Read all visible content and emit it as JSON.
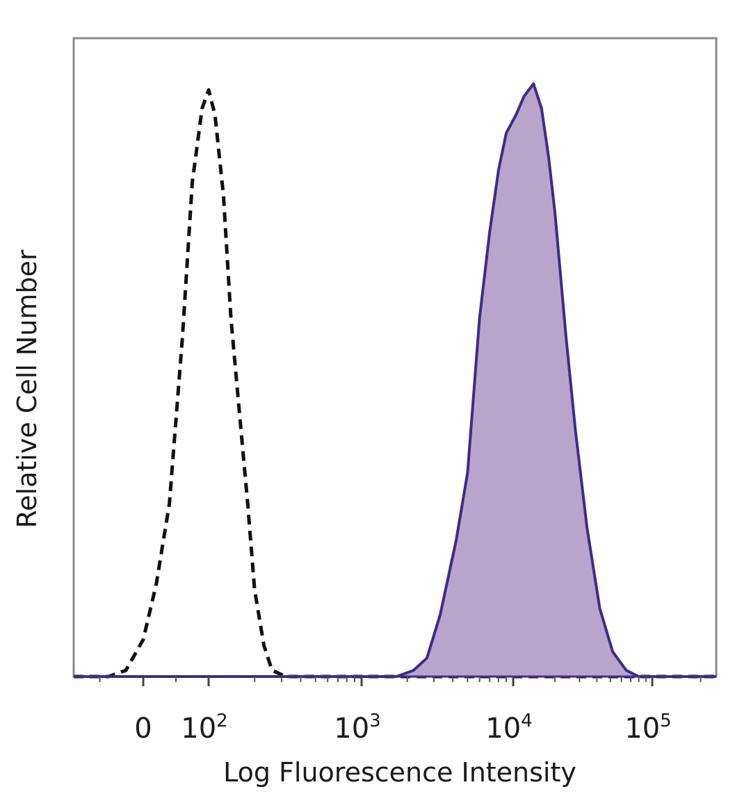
{
  "chart_data": {
    "type": "area",
    "xlabel": "Log Fluorescence Intensity",
    "ylabel": "Relative Cell Number",
    "x_scale": "biexponential",
    "xlim": [
      -80,
      250000
    ],
    "ylim": [
      0,
      100
    ],
    "grid": false,
    "legend": "none",
    "x_ticks": [
      {
        "value": 0,
        "base": "0",
        "exp": ""
      },
      {
        "value": 100,
        "base": "10",
        "exp": "2"
      },
      {
        "value": 1000,
        "base": "10",
        "exp": "3"
      },
      {
        "value": 10000,
        "base": "10",
        "exp": "4"
      },
      {
        "value": 100000,
        "base": "10",
        "exp": "5"
      }
    ],
    "series": [
      {
        "style": "dashed",
        "color": "#111111",
        "filled": false,
        "points": [
          [
            -80,
            0
          ],
          [
            -40,
            0
          ],
          [
            -20,
            1
          ],
          [
            0,
            6
          ],
          [
            20,
            15
          ],
          [
            40,
            28
          ],
          [
            60,
            55
          ],
          [
            75,
            80
          ],
          [
            90,
            92
          ],
          [
            100,
            95
          ],
          [
            110,
            91
          ],
          [
            125,
            78
          ],
          [
            140,
            58
          ],
          [
            160,
            42
          ],
          [
            180,
            28
          ],
          [
            200,
            14
          ],
          [
            230,
            5
          ],
          [
            260,
            1
          ],
          [
            320,
            0
          ],
          [
            1000,
            0
          ],
          [
            3000,
            0
          ],
          [
            10000,
            0
          ],
          [
            30000,
            0
          ],
          [
            100000,
            0
          ],
          [
            250000,
            0
          ]
        ]
      },
      {
        "style": "solid",
        "color": "#3f2b86",
        "fill": "#b9a4cc",
        "filled": true,
        "points": [
          [
            -80,
            0
          ],
          [
            100,
            0
          ],
          [
            1000,
            0
          ],
          [
            1700,
            0
          ],
          [
            2200,
            1
          ],
          [
            2700,
            3
          ],
          [
            3300,
            10
          ],
          [
            4200,
            22
          ],
          [
            5000,
            33
          ],
          [
            6000,
            58
          ],
          [
            7000,
            72
          ],
          [
            8000,
            82
          ],
          [
            9000,
            88
          ],
          [
            10500,
            91
          ],
          [
            12000,
            94
          ],
          [
            14000,
            96
          ],
          [
            16000,
            92
          ],
          [
            18000,
            84
          ],
          [
            20000,
            75
          ],
          [
            24000,
            55
          ],
          [
            28000,
            40
          ],
          [
            34000,
            24
          ],
          [
            42000,
            11
          ],
          [
            52000,
            4
          ],
          [
            65000,
            1
          ],
          [
            80000,
            0
          ],
          [
            250000,
            0
          ]
        ]
      }
    ]
  }
}
